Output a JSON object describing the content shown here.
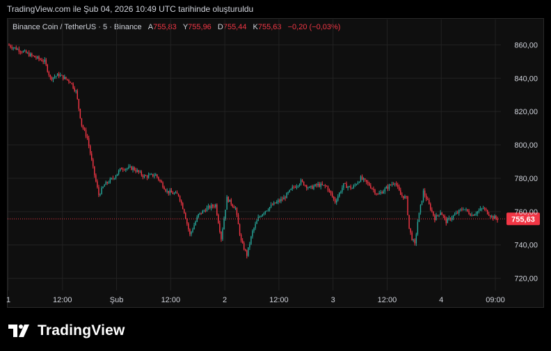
{
  "header": {
    "caption": "TradingView.com ile Şub 04, 2026 10:49 UTC tarihinde oluşturuldu"
  },
  "legend": {
    "symbol": "Binance Coin / TetherUS · 5 · Binance",
    "open_label": "A",
    "open_value": "755,83",
    "high_label": "Y",
    "high_value": "755,96",
    "low_label": "D",
    "low_value": "755,44",
    "close_label": "K",
    "close_value": "755,63",
    "change": "−0,20 (−0,03%)"
  },
  "branding": {
    "name": "TradingView"
  },
  "colors": {
    "up": "#26a69a",
    "down": "#f23645",
    "background": "#0f0f0f",
    "grid": "#222222",
    "price_line": "#f23645"
  },
  "chart_data": {
    "type": "candlestick",
    "y_ticks": [
      "860,00",
      "840,00",
      "820,00",
      "800,00",
      "780,00",
      "760,00",
      "740,00",
      "720,00"
    ],
    "y_tick_values": [
      860,
      840,
      820,
      800,
      780,
      760,
      740,
      720
    ],
    "ylim": [
      714,
      866
    ],
    "x_ticks": [
      "1",
      "12:00",
      "Şub",
      "12:00",
      "2",
      "12:00",
      "3",
      "12:00",
      "4",
      "09:00"
    ],
    "current_price_label": "755,63",
    "current_price": 755.63,
    "price_path": [
      {
        "t": 0,
        "p": 860
      },
      {
        "t": 8,
        "p": 857
      },
      {
        "t": 18,
        "p": 853
      },
      {
        "t": 26,
        "p": 850
      },
      {
        "t": 30,
        "p": 840
      },
      {
        "t": 36,
        "p": 842
      },
      {
        "t": 44,
        "p": 838
      },
      {
        "t": 48,
        "p": 832
      },
      {
        "t": 52,
        "p": 812
      },
      {
        "t": 56,
        "p": 804
      },
      {
        "t": 60,
        "p": 786
      },
      {
        "t": 64,
        "p": 770
      },
      {
        "t": 68,
        "p": 776
      },
      {
        "t": 74,
        "p": 780
      },
      {
        "t": 80,
        "p": 786
      },
      {
        "t": 88,
        "p": 786
      },
      {
        "t": 96,
        "p": 781
      },
      {
        "t": 104,
        "p": 782
      },
      {
        "t": 112,
        "p": 772
      },
      {
        "t": 120,
        "p": 770
      },
      {
        "t": 124,
        "p": 760
      },
      {
        "t": 128,
        "p": 746
      },
      {
        "t": 134,
        "p": 758
      },
      {
        "t": 140,
        "p": 762
      },
      {
        "t": 146,
        "p": 764
      },
      {
        "t": 150,
        "p": 744
      },
      {
        "t": 154,
        "p": 768
      },
      {
        "t": 160,
        "p": 762
      },
      {
        "t": 164,
        "p": 742
      },
      {
        "t": 168,
        "p": 734
      },
      {
        "t": 172,
        "p": 748
      },
      {
        "t": 176,
        "p": 756
      },
      {
        "t": 180,
        "p": 760
      },
      {
        "t": 186,
        "p": 764
      },
      {
        "t": 194,
        "p": 768
      },
      {
        "t": 200,
        "p": 774
      },
      {
        "t": 206,
        "p": 778
      },
      {
        "t": 212,
        "p": 774
      },
      {
        "t": 218,
        "p": 776
      },
      {
        "t": 224,
        "p": 775
      },
      {
        "t": 230,
        "p": 766
      },
      {
        "t": 236,
        "p": 776
      },
      {
        "t": 242,
        "p": 774
      },
      {
        "t": 248,
        "p": 780
      },
      {
        "t": 254,
        "p": 776
      },
      {
        "t": 260,
        "p": 770
      },
      {
        "t": 266,
        "p": 774
      },
      {
        "t": 272,
        "p": 778
      },
      {
        "t": 276,
        "p": 770
      },
      {
        "t": 280,
        "p": 768
      },
      {
        "t": 282,
        "p": 750
      },
      {
        "t": 284,
        "p": 744
      },
      {
        "t": 286,
        "p": 740
      },
      {
        "t": 288,
        "p": 754
      },
      {
        "t": 292,
        "p": 772
      },
      {
        "t": 296,
        "p": 764
      },
      {
        "t": 300,
        "p": 756
      },
      {
        "t": 304,
        "p": 760
      },
      {
        "t": 308,
        "p": 754
      },
      {
        "t": 314,
        "p": 758
      },
      {
        "t": 320,
        "p": 762
      },
      {
        "t": 326,
        "p": 758
      },
      {
        "t": 334,
        "p": 762
      },
      {
        "t": 340,
        "p": 757
      },
      {
        "t": 344,
        "p": 755.6
      }
    ]
  }
}
